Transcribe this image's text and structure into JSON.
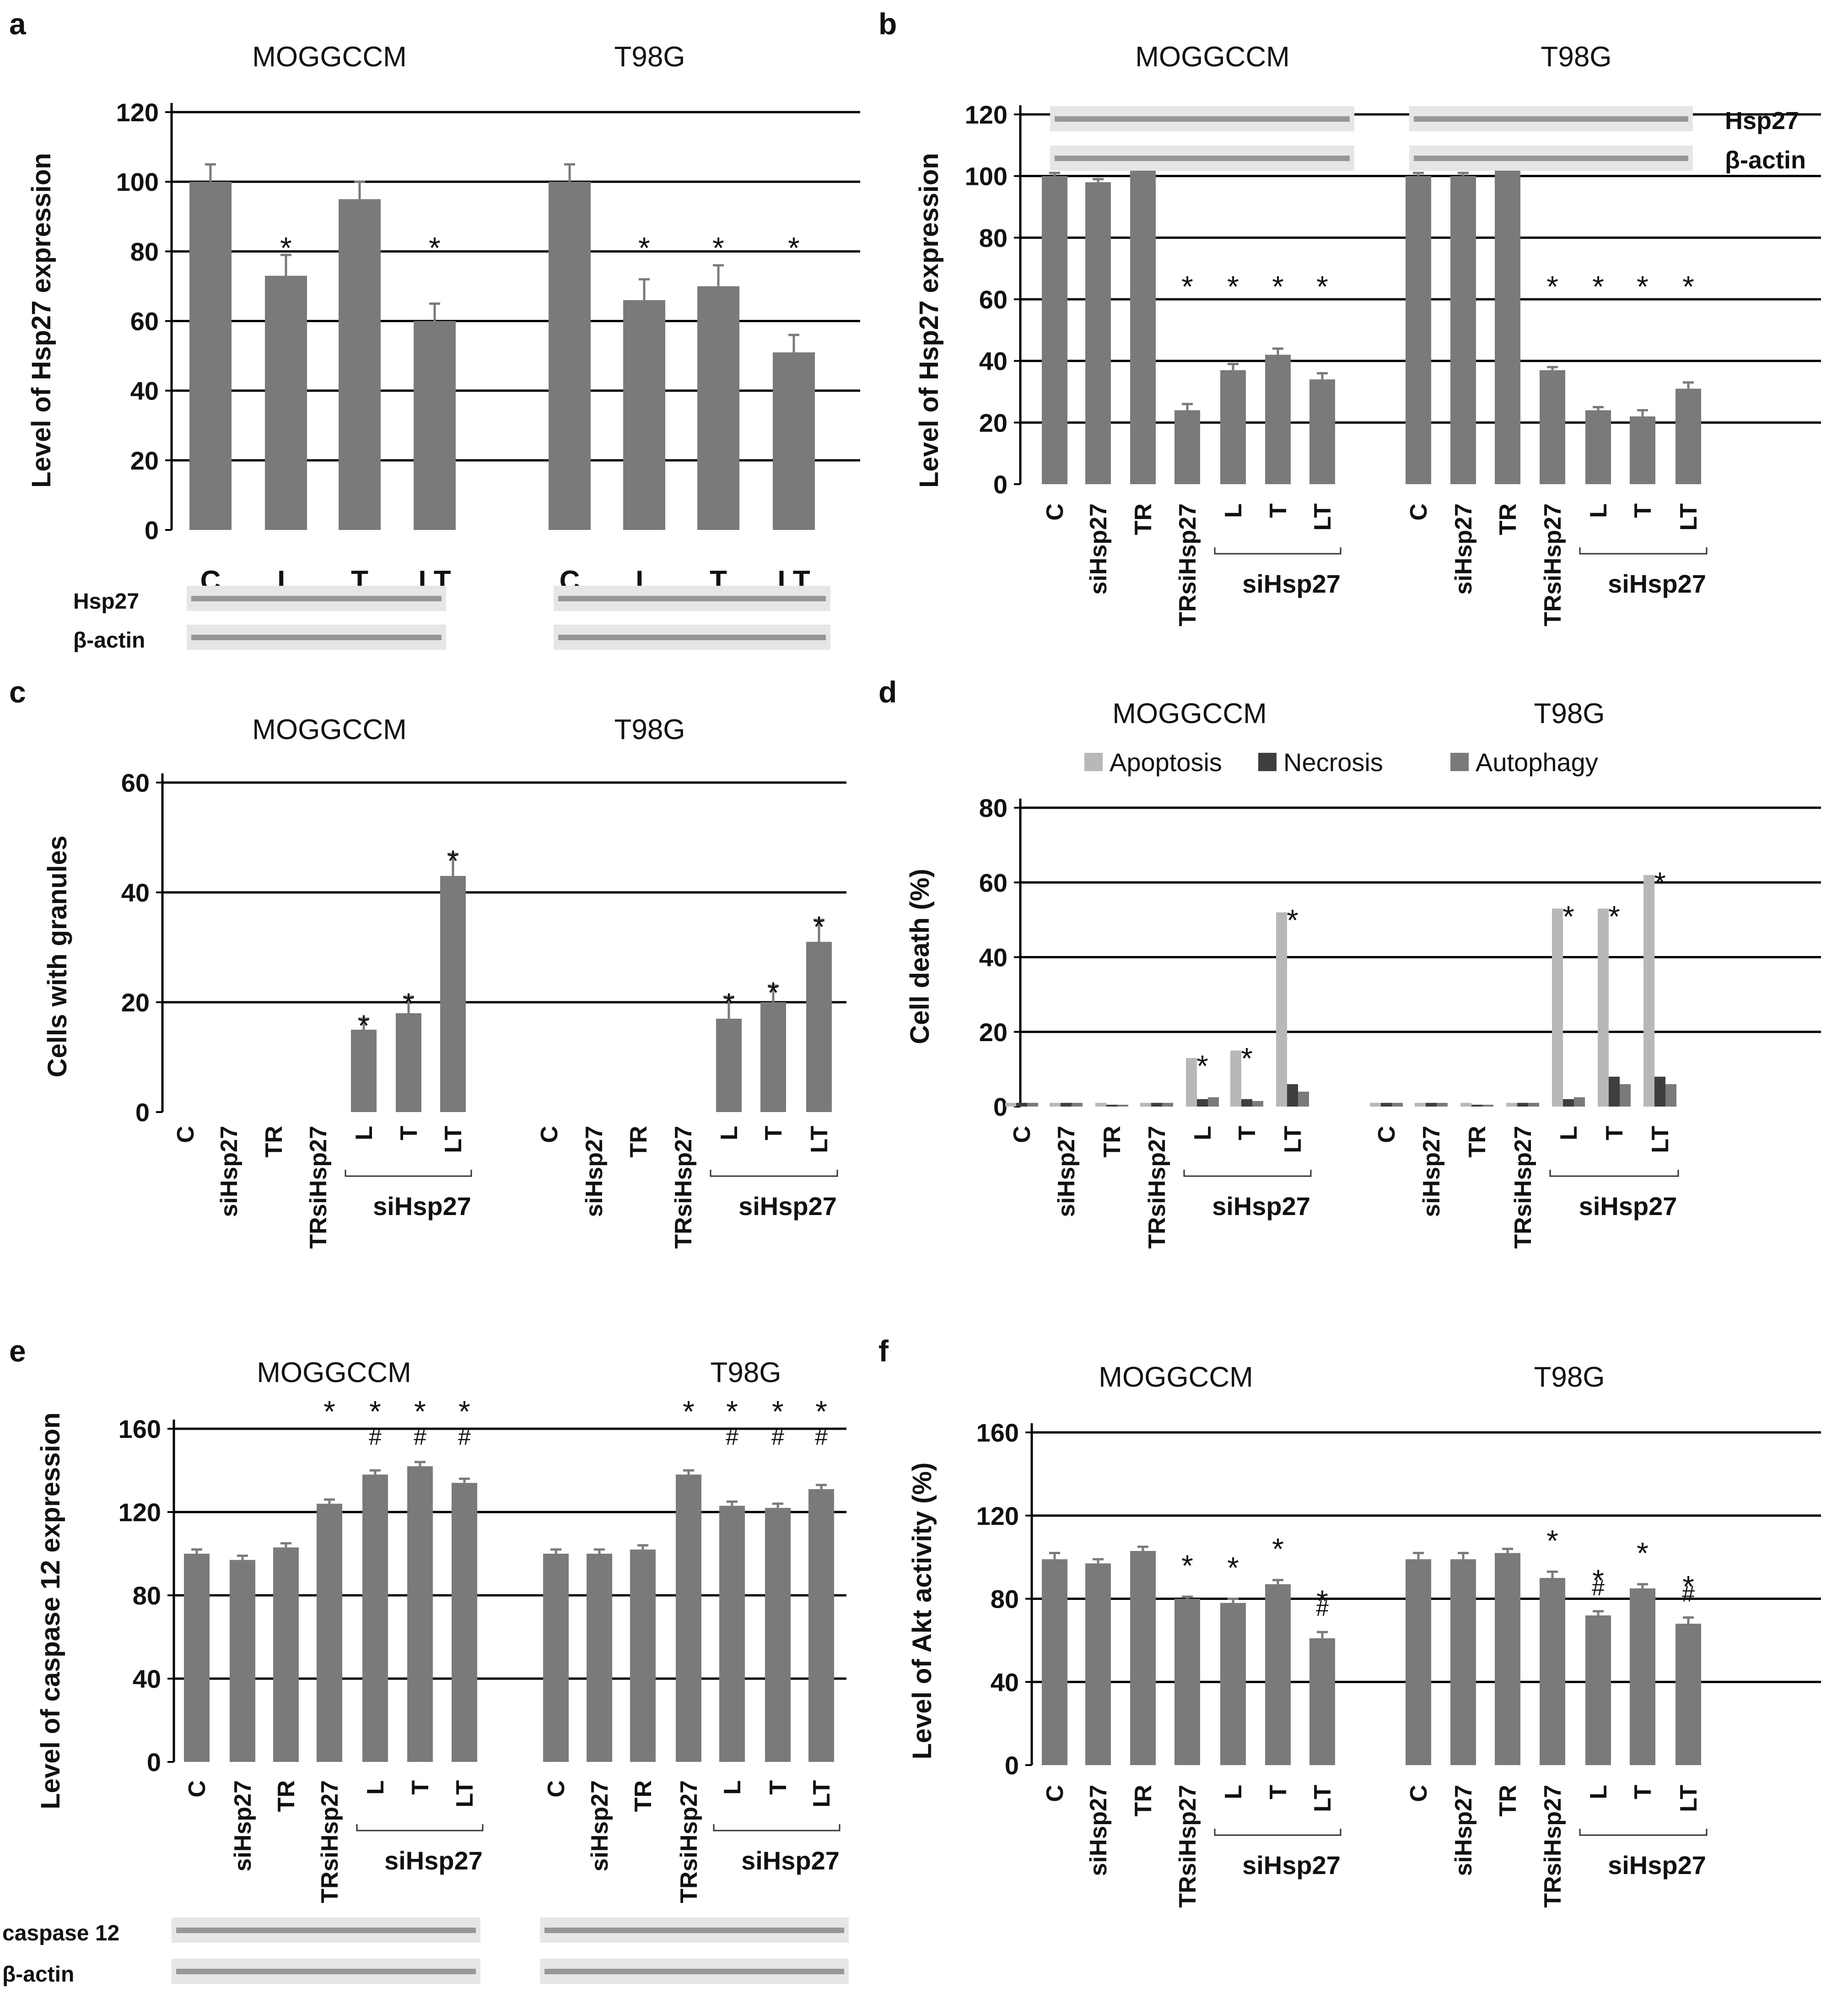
{
  "colors": {
    "bar": "#7a7a7a",
    "apoptosis": "#b8b8b8",
    "necrosis": "#3e3e3e",
    "autophagy": "#7a7a7a",
    "gridline": "#000000",
    "blot_band": "#555555"
  },
  "chart_data": [
    {
      "panel": "a",
      "type": "bar",
      "cell_lines": [
        "MOGGCCM",
        "T98G"
      ],
      "ylabel": "Level of Hsp27 expression",
      "ylim": [
        0,
        120
      ],
      "yticks": [
        0,
        20,
        40,
        60,
        80,
        100,
        120
      ],
      "groups": [
        {
          "categories": [
            "C",
            "L",
            "T",
            "LT"
          ],
          "values": [
            100,
            73,
            95,
            60
          ],
          "errors": [
            5,
            6,
            5,
            5
          ],
          "marks": [
            "",
            "*",
            "",
            "*"
          ]
        },
        {
          "categories": [
            "C",
            "L",
            "T",
            "LT"
          ],
          "values": [
            100,
            66,
            70,
            51
          ],
          "errors": [
            5,
            6,
            6,
            5
          ],
          "marks": [
            "",
            "*",
            "*",
            "*"
          ]
        }
      ],
      "blot": {
        "labels": [
          "Hsp27",
          "β-actin"
        ],
        "lanes": [
          "C",
          "L",
          "T",
          "LT"
        ]
      }
    },
    {
      "panel": "b",
      "type": "bar",
      "cell_lines": [
        "MOGGCCM",
        "T98G"
      ],
      "ylabel": "Level of Hsp27 expression",
      "ylim": [
        0,
        120
      ],
      "yticks": [
        0,
        20,
        40,
        60,
        80,
        100,
        120
      ],
      "groups": [
        {
          "categories": [
            "C",
            "siHsp27",
            "TR",
            "TRsiHsp27",
            "L",
            "T",
            "LT"
          ],
          "values": [
            100,
            98,
            104,
            24,
            37,
            42,
            34
          ],
          "errors": [
            1,
            1,
            1,
            2,
            2,
            2,
            2
          ],
          "marks": [
            "",
            "",
            "",
            "*",
            "*",
            "*",
            "*"
          ]
        },
        {
          "categories": [
            "C",
            "siHsp27",
            "TR",
            "TRsiHsp27",
            "L",
            "T",
            "LT"
          ],
          "values": [
            100,
            100,
            102,
            37,
            24,
            22,
            31
          ],
          "errors": [
            1,
            1,
            2,
            1,
            1,
            2,
            2
          ],
          "marks": [
            "",
            "",
            "",
            "*",
            "*",
            "*",
            "*"
          ]
        }
      ],
      "bracket_label": "siHsp27",
      "blot": {
        "labels": [
          "Hsp27",
          "β-actin"
        ]
      }
    },
    {
      "panel": "c",
      "type": "bar",
      "cell_lines": [
        "MOGGCCM",
        "T98G"
      ],
      "ylabel": "Cells with granules",
      "ylim": [
        0,
        60
      ],
      "yticks": [
        0,
        20,
        40,
        60
      ],
      "groups": [
        {
          "categories": [
            "C",
            "siHsp27",
            "TR",
            "TRsiHsp27",
            "L",
            "T",
            "LT"
          ],
          "values": [
            0,
            0,
            0,
            0,
            15,
            18,
            43
          ],
          "errors": [
            0,
            0,
            0,
            0,
            2,
            3,
            4
          ],
          "marks": [
            "",
            "",
            "",
            "",
            "*",
            "*",
            "*"
          ]
        },
        {
          "categories": [
            "C",
            "siHsp27",
            "TR",
            "TRsiHsp27",
            "L",
            "T",
            "LT"
          ],
          "values": [
            0,
            0,
            0,
            0,
            17,
            20,
            31
          ],
          "errors": [
            0,
            0,
            0,
            0,
            4,
            3,
            4
          ],
          "marks": [
            "",
            "",
            "",
            "",
            "*",
            "*",
            "*"
          ]
        }
      ],
      "bracket_label": "siHsp27"
    },
    {
      "panel": "d",
      "type": "bar",
      "cell_lines": [
        "MOGGCCM",
        "T98G"
      ],
      "ylabel": "Cell death (%)",
      "ylim": [
        0,
        80
      ],
      "yticks": [
        0,
        20,
        40,
        60,
        80
      ],
      "legend": [
        "Apoptosis",
        "Necrosis",
        "Autophagy"
      ],
      "groups": [
        {
          "categories": [
            "C",
            "siHsp27",
            "TR",
            "TRsiHsp27",
            "L",
            "T",
            "LT"
          ],
          "series": [
            {
              "name": "Apoptosis",
              "values": [
                1,
                1,
                1,
                1,
                13,
                15,
                52
              ]
            },
            {
              "name": "Necrosis",
              "values": [
                1,
                1,
                0.5,
                1,
                2,
                2,
                6
              ]
            },
            {
              "name": "Autophagy",
              "values": [
                1,
                1,
                0.5,
                1,
                2.5,
                1.5,
                4
              ]
            }
          ],
          "marks": [
            "",
            "",
            "",
            "",
            "*",
            "*",
            "*"
          ]
        },
        {
          "categories": [
            "C",
            "siHsp27",
            "TR",
            "TRsiHsp27",
            "L",
            "T",
            "LT"
          ],
          "series": [
            {
              "name": "Apoptosis",
              "values": [
                1,
                1,
                1,
                1,
                53,
                53,
                62
              ]
            },
            {
              "name": "Necrosis",
              "values": [
                1,
                1,
                0.5,
                1,
                2,
                8,
                8
              ]
            },
            {
              "name": "Autophagy",
              "values": [
                1,
                1,
                0.5,
                1,
                2.5,
                6,
                6
              ]
            }
          ],
          "marks": [
            "",
            "",
            "",
            "",
            "*",
            "*",
            "*"
          ]
        }
      ],
      "bracket_label": "siHsp27"
    },
    {
      "panel": "e",
      "type": "bar",
      "cell_lines": [
        "MOGGCCM",
        "T98G"
      ],
      "ylabel": "Level of caspase 12 expression",
      "ylim": [
        0,
        160
      ],
      "yticks": [
        0,
        40,
        80,
        120,
        160
      ],
      "groups": [
        {
          "categories": [
            "C",
            "siHsp27",
            "TR",
            "TRsiHsp27",
            "L",
            "T",
            "LT"
          ],
          "values": [
            100,
            97,
            103,
            124,
            138,
            142,
            134
          ],
          "errors": [
            2,
            2,
            2,
            2,
            2,
            2,
            2
          ],
          "marks": [
            "",
            "",
            "",
            "*",
            "*",
            "*",
            "*"
          ],
          "hash": [
            "",
            "",
            "",
            "",
            "#",
            "#",
            "#"
          ]
        },
        {
          "categories": [
            "C",
            "siHsp27",
            "TR",
            "TRsiHsp27",
            "L",
            "T",
            "LT"
          ],
          "values": [
            100,
            100,
            102,
            138,
            123,
            122,
            131
          ],
          "errors": [
            2,
            2,
            2,
            2,
            2,
            2,
            2
          ],
          "marks": [
            "",
            "",
            "",
            "*",
            "*",
            "*",
            "*"
          ],
          "hash": [
            "",
            "",
            "",
            "",
            "#",
            "#",
            "#"
          ]
        }
      ],
      "bracket_label": "siHsp27",
      "blot": {
        "labels": [
          "caspase 12",
          "β-actin"
        ]
      }
    },
    {
      "panel": "f",
      "type": "bar",
      "cell_lines": [
        "MOGGCCM",
        "T98G"
      ],
      "ylabel": "Level of Akt activity (%)",
      "ylim": [
        0,
        160
      ],
      "yticks": [
        0,
        40,
        80,
        120,
        160
      ],
      "groups": [
        {
          "categories": [
            "C",
            "siHsp27",
            "TR",
            "TRsiHsp27",
            "L",
            "T",
            "LT"
          ],
          "values": [
            99,
            97,
            103,
            80,
            78,
            87,
            61
          ],
          "errors": [
            3,
            2,
            2,
            1,
            2,
            2,
            3
          ],
          "marks": [
            "",
            "",
            "",
            "*",
            "*",
            "*",
            "*"
          ],
          "hash": [
            "",
            "",
            "",
            "",
            "",
            "",
            "#"
          ]
        },
        {
          "categories": [
            "C",
            "siHsp27",
            "TR",
            "TRsiHsp27",
            "L",
            "T",
            "LT"
          ],
          "values": [
            99,
            99,
            102,
            90,
            72,
            85,
            68
          ],
          "errors": [
            3,
            3,
            2,
            3,
            2,
            2,
            3
          ],
          "marks": [
            "",
            "",
            "",
            "*",
            "*",
            "*",
            "*"
          ],
          "hash": [
            "",
            "",
            "",
            "",
            "#",
            "",
            "#"
          ]
        }
      ],
      "bracket_label": "siHsp27"
    }
  ]
}
